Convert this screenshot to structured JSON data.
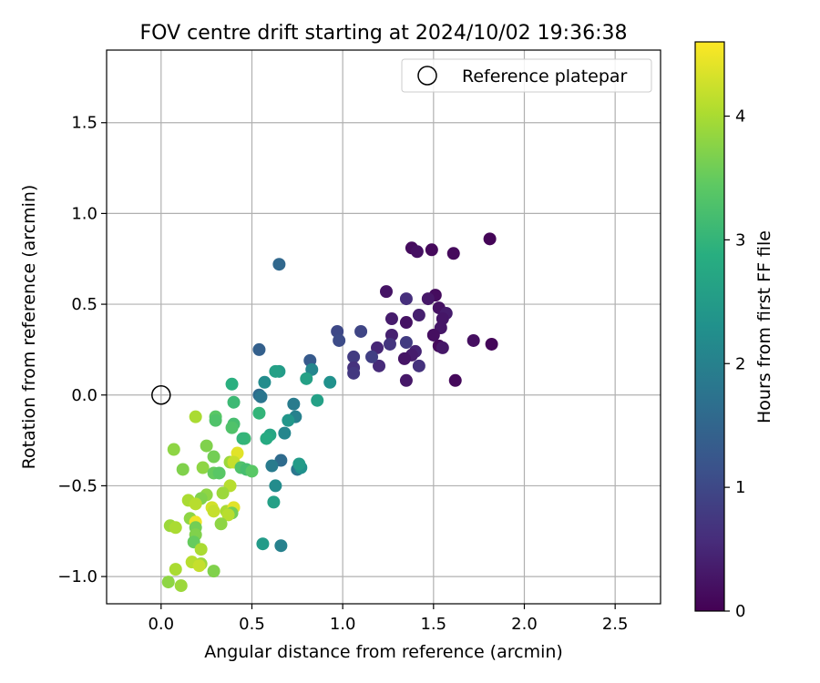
{
  "chart_data": {
    "type": "scatter",
    "title": "FOV centre drift starting at 2024/10/02 19:36:38",
    "xlabel": "Angular distance from reference (arcmin)",
    "ylabel": "Rotation from reference (arcmin)",
    "xlim": [
      -0.3,
      2.75
    ],
    "ylim": [
      -1.15,
      1.9
    ],
    "xticks": [
      0.0,
      0.5,
      1.0,
      1.5,
      2.0,
      2.5
    ],
    "xtick_labels": [
      "0.0",
      "0.5",
      "1.0",
      "1.5",
      "2.0",
      "2.5"
    ],
    "yticks": [
      -1.0,
      -0.5,
      0.0,
      0.5,
      1.0,
      1.5
    ],
    "ytick_labels": [
      "−1.0",
      "−0.5",
      "0.0",
      "0.5",
      "1.0",
      "1.5"
    ],
    "grid": true,
    "legend": {
      "position": "top-right",
      "entries": [
        {
          "label": "Reference platepar",
          "marker": "open-circle"
        }
      ]
    },
    "reference_point": {
      "x": 0.0,
      "y": 0.0
    },
    "colorbar": {
      "label": "Hours from first FF file",
      "colormap": "viridis",
      "range": [
        0,
        4.6
      ],
      "ticks": [
        0,
        1,
        2,
        3,
        4
      ],
      "tick_labels": [
        "0",
        "1",
        "2",
        "3",
        "4"
      ]
    },
    "points": [
      {
        "x": 1.81,
        "y": 0.86,
        "t": 0.05
      },
      {
        "x": 1.38,
        "y": 0.81,
        "t": 0.15
      },
      {
        "x": 1.49,
        "y": 0.8,
        "t": 0.1
      },
      {
        "x": 1.61,
        "y": 0.78,
        "t": 0.12
      },
      {
        "x": 1.41,
        "y": 0.79,
        "t": 0.2
      },
      {
        "x": 1.82,
        "y": 0.28,
        "t": 0.08
      },
      {
        "x": 1.72,
        "y": 0.3,
        "t": 0.18
      },
      {
        "x": 1.62,
        "y": 0.08,
        "t": 0.1
      },
      {
        "x": 1.24,
        "y": 0.57,
        "t": 0.25
      },
      {
        "x": 1.51,
        "y": 0.55,
        "t": 0.15
      },
      {
        "x": 1.47,
        "y": 0.53,
        "t": 0.3
      },
      {
        "x": 1.53,
        "y": 0.48,
        "t": 0.22
      },
      {
        "x": 1.57,
        "y": 0.45,
        "t": 0.35
      },
      {
        "x": 1.55,
        "y": 0.42,
        "t": 0.28
      },
      {
        "x": 1.42,
        "y": 0.44,
        "t": 0.4
      },
      {
        "x": 1.27,
        "y": 0.42,
        "t": 0.35
      },
      {
        "x": 1.35,
        "y": 0.4,
        "t": 0.22
      },
      {
        "x": 1.54,
        "y": 0.37,
        "t": 0.28
      },
      {
        "x": 1.5,
        "y": 0.33,
        "t": 0.18
      },
      {
        "x": 1.27,
        "y": 0.33,
        "t": 0.42
      },
      {
        "x": 1.53,
        "y": 0.27,
        "t": 0.12
      },
      {
        "x": 1.55,
        "y": 0.26,
        "t": 0.3
      },
      {
        "x": 1.4,
        "y": 0.24,
        "t": 0.45
      },
      {
        "x": 1.38,
        "y": 0.22,
        "t": 0.35
      },
      {
        "x": 1.34,
        "y": 0.2,
        "t": 0.25
      },
      {
        "x": 1.42,
        "y": 0.16,
        "t": 0.65
      },
      {
        "x": 1.35,
        "y": 0.08,
        "t": 0.3
      },
      {
        "x": 1.35,
        "y": 0.53,
        "t": 0.6
      },
      {
        "x": 1.35,
        "y": 0.29,
        "t": 0.8
      },
      {
        "x": 1.26,
        "y": 0.28,
        "t": 0.7
      },
      {
        "x": 1.19,
        "y": 0.26,
        "t": 0.5
      },
      {
        "x": 1.2,
        "y": 0.16,
        "t": 0.55
      },
      {
        "x": 1.16,
        "y": 0.21,
        "t": 0.85
      },
      {
        "x": 1.1,
        "y": 0.35,
        "t": 0.95
      },
      {
        "x": 0.97,
        "y": 0.35,
        "t": 1.0
      },
      {
        "x": 0.98,
        "y": 0.3,
        "t": 1.05
      },
      {
        "x": 1.06,
        "y": 0.21,
        "t": 0.8
      },
      {
        "x": 1.06,
        "y": 0.15,
        "t": 0.65
      },
      {
        "x": 1.06,
        "y": 0.12,
        "t": 0.75
      },
      {
        "x": 0.65,
        "y": 0.72,
        "t": 1.55
      },
      {
        "x": 0.54,
        "y": 0.25,
        "t": 1.4
      },
      {
        "x": 0.82,
        "y": 0.19,
        "t": 1.3
      },
      {
        "x": 0.83,
        "y": 0.14,
        "t": 2.1
      },
      {
        "x": 0.8,
        "y": 0.09,
        "t": 2.6
      },
      {
        "x": 0.93,
        "y": 0.07,
        "t": 2.3
      },
      {
        "x": 0.65,
        "y": 0.13,
        "t": 2.5
      },
      {
        "x": 0.63,
        "y": 0.13,
        "t": 2.6
      },
      {
        "x": 0.57,
        "y": 0.07,
        "t": 2.2
      },
      {
        "x": 0.54,
        "y": 0.0,
        "t": 1.6
      },
      {
        "x": 0.55,
        "y": -0.01,
        "t": 1.8
      },
      {
        "x": 0.86,
        "y": -0.03,
        "t": 2.6
      },
      {
        "x": 0.73,
        "y": -0.05,
        "t": 1.9
      },
      {
        "x": 0.74,
        "y": -0.12,
        "t": 2.0
      },
      {
        "x": 0.7,
        "y": -0.14,
        "t": 2.4
      },
      {
        "x": 0.68,
        "y": -0.21,
        "t": 2.1
      },
      {
        "x": 0.6,
        "y": -0.22,
        "t": 2.7
      },
      {
        "x": 0.58,
        "y": -0.24,
        "t": 2.8
      },
      {
        "x": 0.66,
        "y": -0.36,
        "t": 1.6
      },
      {
        "x": 0.61,
        "y": -0.39,
        "t": 1.9
      },
      {
        "x": 0.75,
        "y": -0.41,
        "t": 1.8
      },
      {
        "x": 0.77,
        "y": -0.4,
        "t": 2.3
      },
      {
        "x": 0.76,
        "y": -0.38,
        "t": 2.5
      },
      {
        "x": 0.63,
        "y": -0.5,
        "t": 2.2
      },
      {
        "x": 0.62,
        "y": -0.59,
        "t": 2.6
      },
      {
        "x": 0.56,
        "y": -0.82,
        "t": 2.5
      },
      {
        "x": 0.66,
        "y": -0.83,
        "t": 2.0
      },
      {
        "x": 0.39,
        "y": 0.06,
        "t": 2.9
      },
      {
        "x": 0.4,
        "y": -0.04,
        "t": 3.1
      },
      {
        "x": 0.54,
        "y": -0.1,
        "t": 3.0
      },
      {
        "x": 0.3,
        "y": -0.12,
        "t": 3.4
      },
      {
        "x": 0.3,
        "y": -0.14,
        "t": 3.3
      },
      {
        "x": 0.4,
        "y": -0.16,
        "t": 3.2
      },
      {
        "x": 0.39,
        "y": -0.18,
        "t": 3.3
      },
      {
        "x": 0.46,
        "y": -0.24,
        "t": 3.1
      },
      {
        "x": 0.45,
        "y": -0.24,
        "t": 3.0
      },
      {
        "x": 0.19,
        "y": -0.12,
        "t": 4.0
      },
      {
        "x": 0.07,
        "y": -0.3,
        "t": 3.8
      },
      {
        "x": 0.25,
        "y": -0.28,
        "t": 3.7
      },
      {
        "x": 0.29,
        "y": -0.34,
        "t": 3.6
      },
      {
        "x": 0.38,
        "y": -0.37,
        "t": 3.9
      },
      {
        "x": 0.42,
        "y": -0.32,
        "t": 4.4
      },
      {
        "x": 0.4,
        "y": -0.37,
        "t": 4.2
      },
      {
        "x": 0.44,
        "y": -0.4,
        "t": 3.3
      },
      {
        "x": 0.47,
        "y": -0.41,
        "t": 3.2
      },
      {
        "x": 0.5,
        "y": -0.42,
        "t": 3.4
      },
      {
        "x": 0.23,
        "y": -0.4,
        "t": 3.8
      },
      {
        "x": 0.12,
        "y": -0.41,
        "t": 3.7
      },
      {
        "x": 0.29,
        "y": -0.43,
        "t": 3.5
      },
      {
        "x": 0.32,
        "y": -0.43,
        "t": 3.4
      },
      {
        "x": 0.38,
        "y": -0.5,
        "t": 4.1
      },
      {
        "x": 0.34,
        "y": -0.54,
        "t": 3.9
      },
      {
        "x": 0.25,
        "y": -0.55,
        "t": 3.8
      },
      {
        "x": 0.22,
        "y": -0.57,
        "t": 3.7
      },
      {
        "x": 0.15,
        "y": -0.58,
        "t": 4.0
      },
      {
        "x": 0.19,
        "y": -0.6,
        "t": 4.1
      },
      {
        "x": 0.28,
        "y": -0.62,
        "t": 4.3
      },
      {
        "x": 0.29,
        "y": -0.64,
        "t": 4.2
      },
      {
        "x": 0.36,
        "y": -0.64,
        "t": 4.0
      },
      {
        "x": 0.4,
        "y": -0.62,
        "t": 4.4
      },
      {
        "x": 0.39,
        "y": -0.65,
        "t": 3.6
      },
      {
        "x": 0.37,
        "y": -0.66,
        "t": 4.1
      },
      {
        "x": 0.16,
        "y": -0.68,
        "t": 3.8
      },
      {
        "x": 0.19,
        "y": -0.7,
        "t": 4.5
      },
      {
        "x": 0.19,
        "y": -0.73,
        "t": 3.6
      },
      {
        "x": 0.33,
        "y": -0.71,
        "t": 3.8
      },
      {
        "x": 0.05,
        "y": -0.72,
        "t": 3.9
      },
      {
        "x": 0.08,
        "y": -0.73,
        "t": 4.0
      },
      {
        "x": 0.19,
        "y": -0.77,
        "t": 3.7
      },
      {
        "x": 0.18,
        "y": -0.81,
        "t": 3.5
      },
      {
        "x": 0.22,
        "y": -0.85,
        "t": 4.0
      },
      {
        "x": 0.17,
        "y": -0.92,
        "t": 4.1
      },
      {
        "x": 0.22,
        "y": -0.93,
        "t": 3.9
      },
      {
        "x": 0.21,
        "y": -0.94,
        "t": 4.2
      },
      {
        "x": 0.08,
        "y": -0.96,
        "t": 4.0
      },
      {
        "x": 0.29,
        "y": -0.97,
        "t": 3.7
      },
      {
        "x": 0.04,
        "y": -1.03,
        "t": 3.8
      },
      {
        "x": 0.11,
        "y": -1.05,
        "t": 3.9
      }
    ]
  }
}
